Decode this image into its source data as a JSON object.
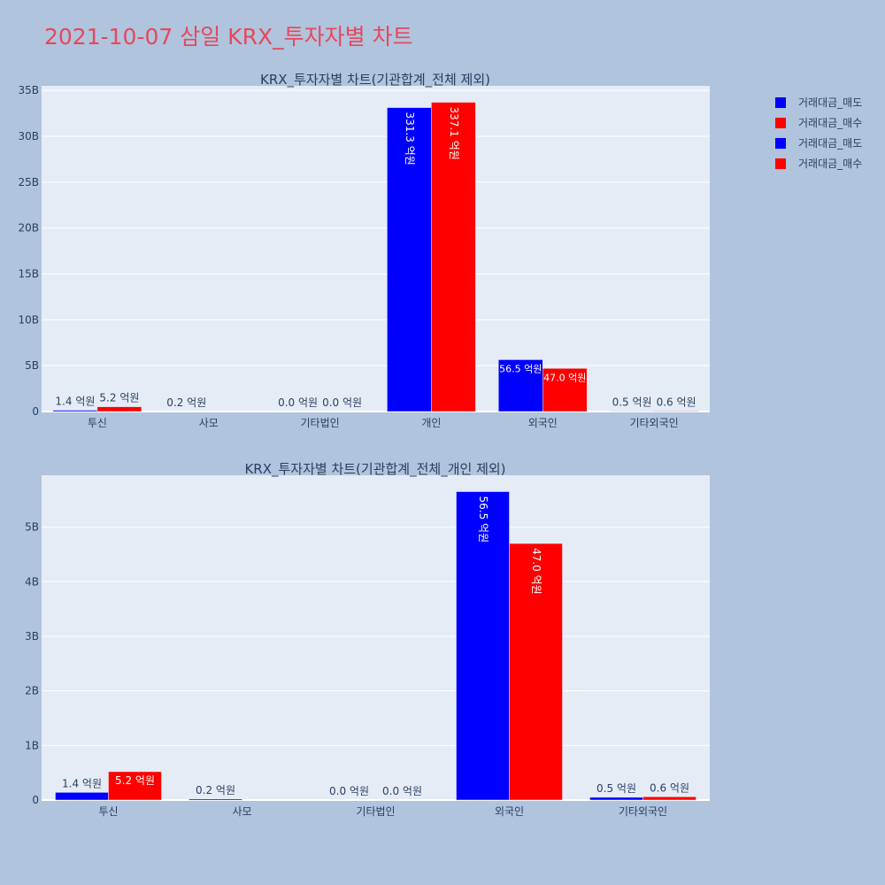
{
  "title": "2021-10-07 삼일 KRX_투자자별 차트",
  "colors": {
    "sell": "#0000ff",
    "buy": "#ff0000",
    "plot_bg": "#e5ecf6",
    "page_bg": "#b0c4de",
    "title": "#e8475b",
    "text": "#2a3f5f"
  },
  "legend": [
    {
      "name": "거래대금_매도",
      "color": "#0000ff"
    },
    {
      "name": "거래대금_매수",
      "color": "#ff0000"
    },
    {
      "name": "거래대금_매도",
      "color": "#0000ff"
    },
    {
      "name": "거래대금_매수",
      "color": "#ff0000"
    }
  ],
  "chart_data": [
    {
      "type": "bar",
      "title": "KRX_투자자별 차트(기관합계_전체 제외)",
      "categories": [
        "투신",
        "사모",
        "기타법인",
        "개인",
        "외국인",
        "기타외국인"
      ],
      "series": [
        {
          "name": "거래대금_매도",
          "color": "#0000ff",
          "values": [
            140000000,
            20000000,
            0,
            33130000000,
            5650000000,
            50000000
          ],
          "labels": [
            "1.4 억원",
            "0.2 억원",
            "0.0 억원",
            "331.3 억원",
            "56.5 억원",
            "0.5 억원"
          ]
        },
        {
          "name": "거래대금_매수",
          "color": "#ff0000",
          "values": [
            520000000,
            0,
            0,
            33710000000,
            4700000000,
            60000000
          ],
          "labels": [
            "5.2 억원",
            "",
            "0.0 억원",
            "337.1 억원",
            "47.0 억원",
            "0.6 억원"
          ]
        }
      ],
      "ylim": [
        0,
        35500000000
      ],
      "yticks": [
        0,
        5000000000,
        10000000000,
        15000000000,
        20000000000,
        25000000000,
        30000000000,
        35000000000
      ],
      "yticklabels": [
        "0",
        "5B",
        "10B",
        "15B",
        "20B",
        "25B",
        "30B",
        "35B"
      ],
      "xlabel": "",
      "ylabel": "",
      "grid": true
    },
    {
      "type": "bar",
      "title": "KRX_투자자별 차트(기관합계_전체_개인 제외)",
      "categories": [
        "투신",
        "사모",
        "기타법인",
        "외국인",
        "기타외국인"
      ],
      "series": [
        {
          "name": "거래대금_매도",
          "color": "#0000ff",
          "values": [
            140000000,
            20000000,
            0,
            5650000000,
            50000000
          ],
          "labels": [
            "1.4 억원",
            "0.2 억원",
            "0.0 억원",
            "56.5 억원",
            "0.5 억원"
          ]
        },
        {
          "name": "거래대금_매수",
          "color": "#ff0000",
          "values": [
            520000000,
            0,
            0,
            4700000000,
            60000000
          ],
          "labels": [
            "5.2 억원",
            "",
            "0.0 억원",
            "47.0 억원",
            "0.6 억원"
          ]
        }
      ],
      "ylim": [
        0,
        5950000000
      ],
      "yticks": [
        0,
        1000000000,
        2000000000,
        3000000000,
        4000000000,
        5000000000
      ],
      "yticklabels": [
        "0",
        "1B",
        "2B",
        "3B",
        "4B",
        "5B"
      ],
      "xlabel": "",
      "ylabel": "",
      "grid": true
    }
  ]
}
